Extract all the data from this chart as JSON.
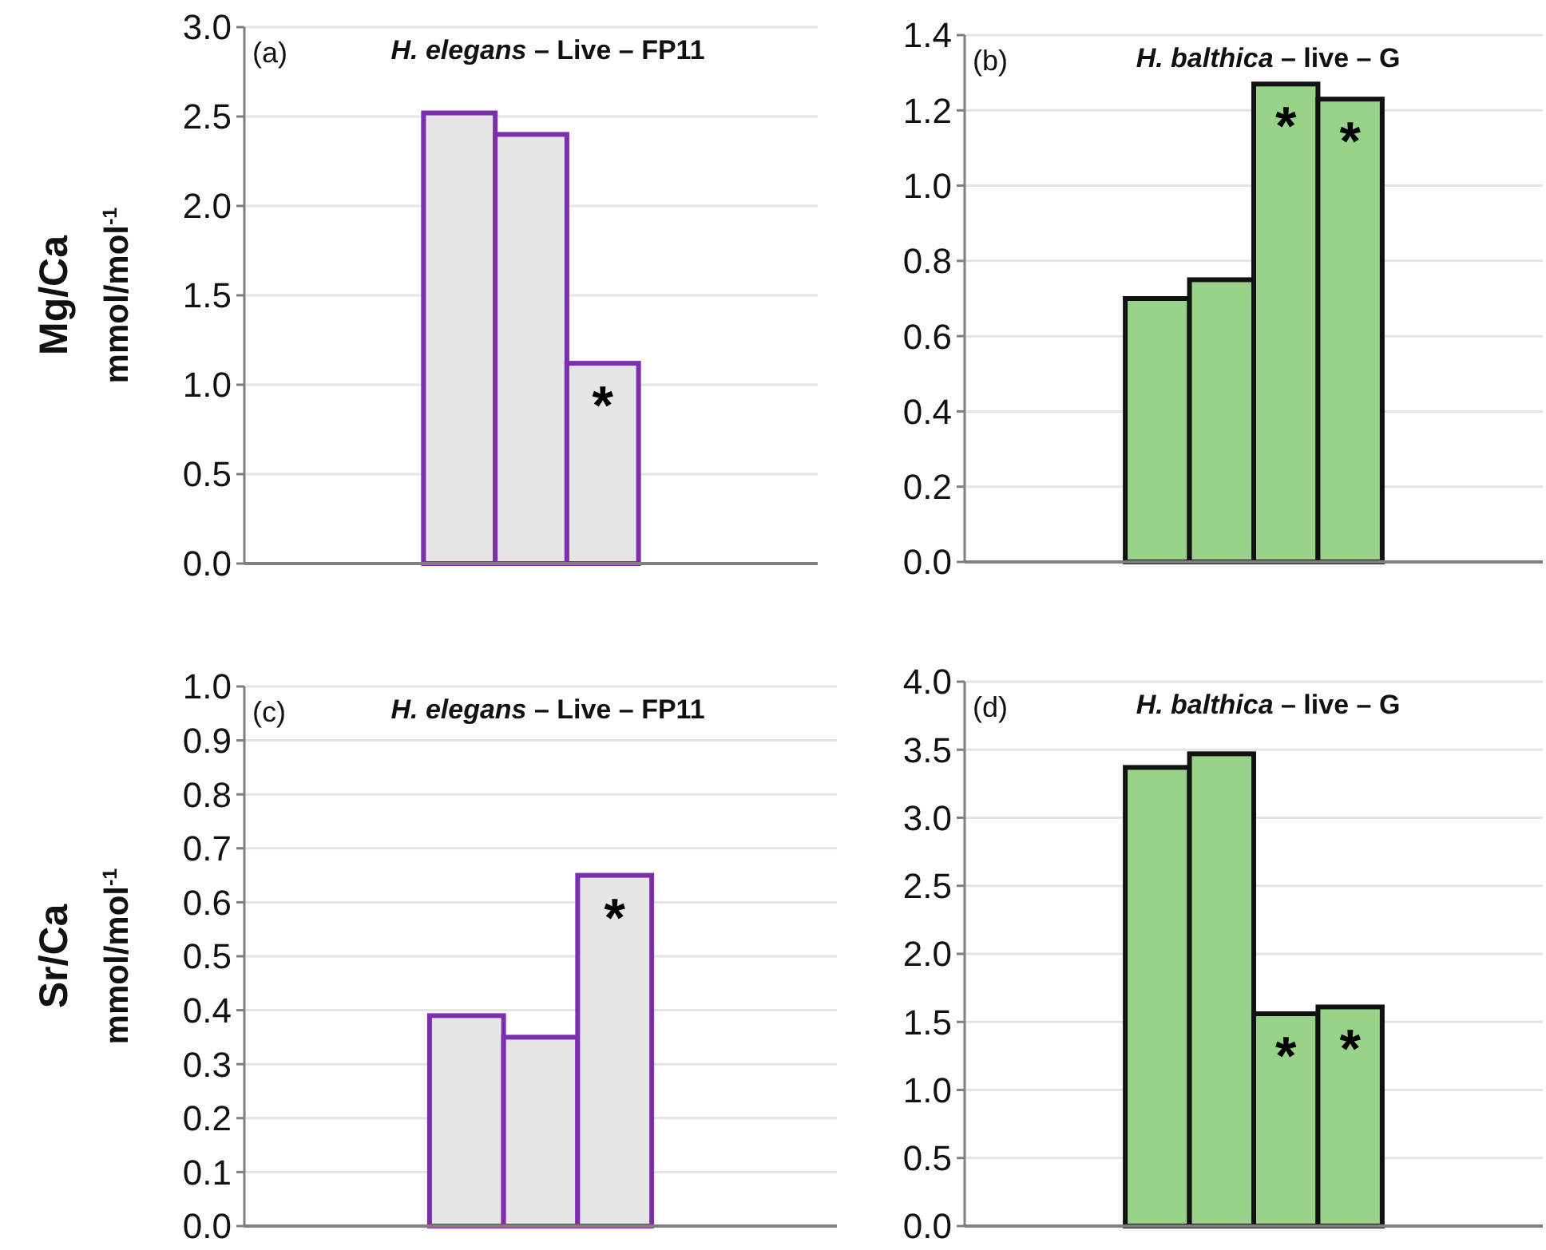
{
  "chart_data": [
    {
      "type": "bar",
      "title": "H. elegans – Live – FP11",
      "ylabel": "Mg/Ca\nmmol/mol$^{-1}$",
      "annotations": [
        "(a)"
      ],
      "categories": [
        null,
        null,
        null
      ],
      "values": [
        2.52,
        2.4,
        1.12
      ],
      "value_labels": [
        null,
        null,
        "*"
      ],
      "color": "#e6e6e6",
      "ylim": [
        0,
        3
      ],
      "yticks": [
        {
          "value": 0,
          "label": "0.0"
        },
        0.5,
        {
          "value": 1,
          "label": "1.0"
        },
        1.5,
        {
          "value": 2,
          "label": "2.0"
        },
        2.5,
        {
          "value": 3,
          "label": "3.0"
        }
      ],
      "grid": "y"
    },
    {
      "type": "bar",
      "title": "H. balthica – live – G",
      "annotations": [
        "(b)"
      ],
      "categories": [
        null,
        null,
        null,
        null
      ],
      "values": [
        0.7,
        0.75,
        1.27,
        1.23
      ],
      "value_labels": [
        null,
        null,
        "*",
        "*"
      ],
      "color": "#98d389",
      "ylim": [
        0,
        1.4
      ],
      "yticks": [
        {
          "value": 0,
          "label": "0.0"
        },
        0.2,
        0.4,
        0.6,
        0.8,
        {
          "value": 1,
          "label": "1.0"
        },
        1.2,
        1.4
      ],
      "grid": "y"
    },
    {
      "type": "bar",
      "title": "H. elegans – Live – FP11",
      "ylabel": "Sr/Ca\nmmol/mol$^{-1}$",
      "annotations": [
        "(c)"
      ],
      "categories": [
        null,
        null,
        null
      ],
      "values": [
        0.39,
        0.35,
        0.65
      ],
      "value_labels": [
        null,
        null,
        "*"
      ],
      "color": "#e6e6e6",
      "ylim": [
        0,
        1
      ],
      "yticks": [
        {
          "value": 0,
          "label": "0.0"
        },
        0.1,
        0.2,
        0.3,
        0.4,
        0.5,
        0.6,
        0.7,
        0.8,
        0.9,
        {
          "value": 1,
          "label": "1.0"
        }
      ],
      "grid": "y"
    },
    {
      "type": "bar",
      "title": "H. balthica – live – G",
      "annotations": [
        "(d)"
      ],
      "categories": [
        null,
        null,
        null,
        null
      ],
      "values": [
        3.37,
        3.47,
        1.56,
        1.61
      ],
      "value_labels": [
        null,
        null,
        "*",
        "*"
      ],
      "color": "#98d389",
      "ylim": [
        0,
        4
      ],
      "yticks": [
        {
          "value": 0,
          "label": "0.0"
        },
        0.5,
        {
          "value": 1,
          "label": "1.0"
        },
        1.5,
        {
          "value": 2,
          "label": "2.0"
        },
        2.5,
        {
          "value": 3,
          "label": "3.0"
        },
        3.5,
        {
          "value": 4,
          "label": "4.0"
        }
      ],
      "grid": "y"
    }
  ]
}
